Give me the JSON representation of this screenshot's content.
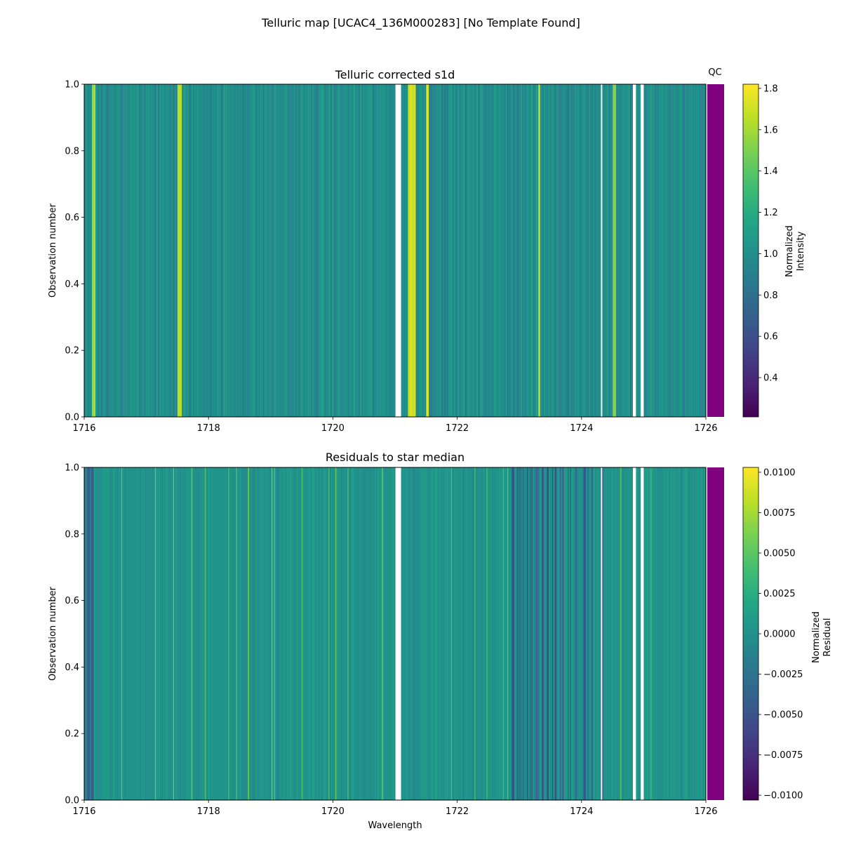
{
  "figure": {
    "suptitle": "Telluric map [UCAC4_136M000283] [No Template Found]",
    "qc_label": "QC",
    "qc_color": "#800080",
    "colormap": "viridis"
  },
  "chart_data": [
    {
      "type": "heatmap",
      "title": "Telluric corrected s1d",
      "xlabel": "",
      "ylabel": "Observation number",
      "xlim": [
        1716,
        1726
      ],
      "ylim": [
        0,
        1
      ],
      "xticks": [
        "1716",
        "1718",
        "1720",
        "1722",
        "1724",
        "1726"
      ],
      "yticks": [
        "0.0",
        "0.2",
        "0.4",
        "0.6",
        "0.8",
        "1.0"
      ],
      "colorbar": {
        "label_lines": [
          "Normalized",
          "Intensity"
        ],
        "range": [
          0.21,
          1.82
        ],
        "ticks": [
          "0.4",
          "0.6",
          "0.8",
          "1.0",
          "1.2",
          "1.4",
          "1.6",
          "1.8"
        ]
      },
      "gaps": [
        [
          1721.0,
          1721.1
        ],
        [
          1724.3,
          1724.33
        ],
        [
          1724.82,
          1724.88
        ],
        [
          1724.95,
          1725.0
        ]
      ],
      "bright_bands": [
        [
          1716.12,
          1716.18,
          1.65
        ],
        [
          1717.5,
          1717.56,
          1.7
        ],
        [
          1721.2,
          1721.32,
          1.75
        ],
        [
          1721.5,
          1721.54,
          1.8
        ],
        [
          1723.3,
          1723.33,
          1.7
        ],
        [
          1724.5,
          1724.55,
          1.6
        ]
      ]
    },
    {
      "type": "heatmap",
      "title": "Residuals to star median",
      "xlabel": "Wavelength",
      "ylabel": "Observation number",
      "xlim": [
        1716,
        1726
      ],
      "ylim": [
        0,
        1
      ],
      "xticks": [
        "1716",
        "1718",
        "1720",
        "1722",
        "1724",
        "1726"
      ],
      "yticks": [
        "0.0",
        "0.2",
        "0.4",
        "0.6",
        "0.8",
        "1.0"
      ],
      "colorbar": {
        "label_lines": [
          "Normalized",
          "Residual"
        ],
        "range": [
          -0.0103,
          0.0103
        ],
        "ticks": [
          "−0.0100",
          "−0.0075",
          "−0.0050",
          "−0.0025",
          "0.0000",
          "0.0025",
          "0.0050",
          "0.0075",
          "0.0100"
        ]
      },
      "gaps": [
        [
          1721.0,
          1721.1
        ],
        [
          1724.3,
          1724.33
        ],
        [
          1724.82,
          1724.88
        ],
        [
          1724.95,
          1725.0
        ]
      ]
    }
  ]
}
